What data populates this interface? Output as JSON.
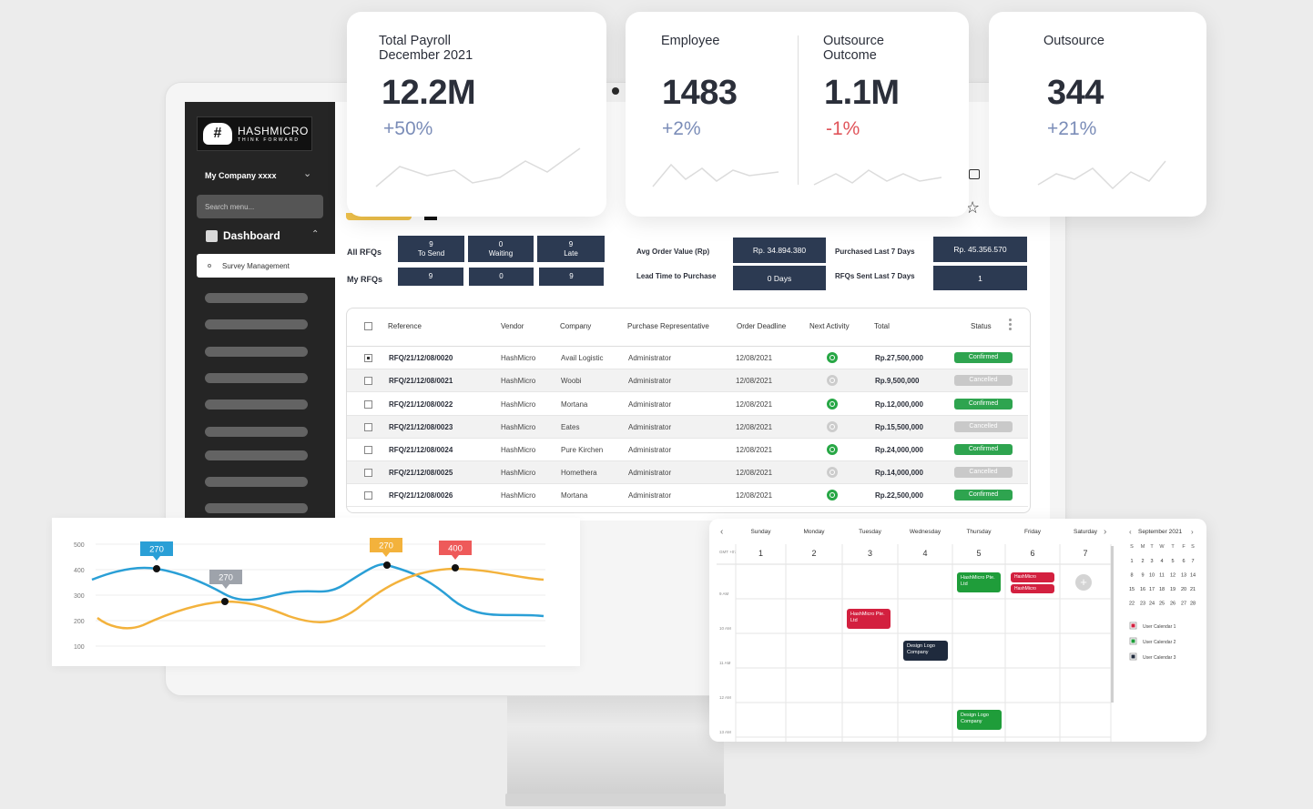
{
  "sidebar": {
    "logo_mark": "#",
    "logo_name": "HASHMICRO",
    "logo_tagline": "THINK FORWARD",
    "company": "My Company xxxx",
    "search_placeholder": "Search menu...",
    "dashboard_label": "Dashboard",
    "active_item": "Survey Management",
    "placeholder_items": 9
  },
  "kpis": {
    "payroll": {
      "title": "Total Payroll\nDecember 2021",
      "value": "12.2M",
      "change": "+50%",
      "trend": "up"
    },
    "employee": {
      "title": "Employee",
      "value": "1483",
      "change": "+2%",
      "trend": "up"
    },
    "outsource_outcome": {
      "title": "Outsource\nOutcome",
      "value": "1.1M",
      "change": "-1%",
      "trend": "down"
    },
    "outsource": {
      "title": "Outsource",
      "value": "344",
      "change": "+21%",
      "trend": "up"
    }
  },
  "rfq": {
    "all_label": "All RFQs",
    "my_label": "My RFQs",
    "all": [
      {
        "count": "9",
        "label": "To Send"
      },
      {
        "count": "0",
        "label": "Waiting"
      },
      {
        "count": "9",
        "label": "Late"
      }
    ],
    "my": [
      "9",
      "0",
      "9"
    ],
    "metrics": {
      "avg_order_label": "Avg Order Value (Rp)",
      "avg_order_value": "Rp. 34.894.380",
      "lead_time_label": "Lead Time to Purchase",
      "lead_time_value": "0 Days",
      "purchased_label": "Purchased Last 7 Days",
      "purchased_value": "Rp. 45.356.570",
      "sent_label": "RFQs Sent Last 7 Days",
      "sent_value": "1"
    }
  },
  "table": {
    "headers": {
      "reference": "Reference",
      "vendor": "Vendor",
      "company": "Company",
      "rep": "Purchase Representative",
      "deadline": "Order Deadline",
      "activity": "Next Activity",
      "total": "Total",
      "status": "Status"
    },
    "rows": [
      {
        "ref": "RFQ/21/12/08/0020",
        "vendor": "HashMicro",
        "company": "Avail Logistic",
        "rep": "Administrator",
        "deadline": "12/08/2021",
        "activity": true,
        "total": "Rp.27,500,000",
        "status": "Confirmed",
        "checked": true
      },
      {
        "ref": "RFQ/21/12/08/0021",
        "vendor": "HashMicro",
        "company": "Woobi",
        "rep": "Administrator",
        "deadline": "12/08/2021",
        "activity": false,
        "total": "Rp.9,500,000",
        "status": "Cancelled",
        "checked": false
      },
      {
        "ref": "RFQ/21/12/08/0022",
        "vendor": "HashMicro",
        "company": "Mortana",
        "rep": "Administrator",
        "deadline": "12/08/2021",
        "activity": true,
        "total": "Rp.12,000,000",
        "status": "Confirmed",
        "checked": false
      },
      {
        "ref": "RFQ/21/12/08/0023",
        "vendor": "HashMicro",
        "company": "Eates",
        "rep": "Administrator",
        "deadline": "12/08/2021",
        "activity": false,
        "total": "Rp.15,500,000",
        "status": "Cancelled",
        "checked": false
      },
      {
        "ref": "RFQ/21/12/08/0024",
        "vendor": "HashMicro",
        "company": "Pure Kirchen",
        "rep": "Administrator",
        "deadline": "12/08/2021",
        "activity": true,
        "total": "Rp.24,000,000",
        "status": "Confirmed",
        "checked": false
      },
      {
        "ref": "RFQ/21/12/08/0025",
        "vendor": "HashMicro",
        "company": "Homethera",
        "rep": "Administrator",
        "deadline": "12/08/2021",
        "activity": false,
        "total": "Rp.14,000,000",
        "status": "Cancelled",
        "checked": false
      },
      {
        "ref": "RFQ/21/12/08/0026",
        "vendor": "HashMicro",
        "company": "Mortana",
        "rep": "Administrator",
        "deadline": "12/08/2021",
        "activity": true,
        "total": "Rp.22,500,000",
        "status": "Confirmed",
        "checked": false
      }
    ]
  },
  "line_chart": {
    "y_ticks": [
      "500",
      "400",
      "300",
      "200",
      "100"
    ],
    "callouts": [
      {
        "text": "270",
        "color": "#2a9fd6"
      },
      {
        "text": "270",
        "color": "#9ea3ab"
      },
      {
        "text": "270",
        "color": "#f3b23c"
      },
      {
        "text": "400",
        "color": "#ee5a5a"
      }
    ],
    "series_colors": [
      "#2a9fd6",
      "#f3b23c"
    ]
  },
  "calendar": {
    "days": [
      "Sunday",
      "Monday",
      "Tuesday",
      "Wednesday",
      "Thursday",
      "Friday",
      "Saturday"
    ],
    "dates": [
      "1",
      "2",
      "3",
      "4",
      "5",
      "6",
      "7"
    ],
    "tz": "GMT +07",
    "times": [
      "9 AM",
      "10 AM",
      "11 AM",
      "12 AM",
      "13 AM"
    ],
    "events": [
      {
        "day": 4,
        "slot": 0,
        "text": "HashMicro Pte. Ltd",
        "color": "green"
      },
      {
        "day": 5,
        "slot": 0,
        "text": "HashMicro",
        "color": "red"
      },
      {
        "day": 5,
        "slot": 0,
        "text": "HashMicro",
        "color": "red"
      },
      {
        "day": 2,
        "slot": 1,
        "text": "HashMicro Pte. Ltd",
        "color": "red"
      },
      {
        "day": 3,
        "slot": 2,
        "text": "Design Logo Company",
        "color": "navy"
      },
      {
        "day": 4,
        "slot": 4,
        "text": "Design Logo Company",
        "color": "green"
      }
    ],
    "mini": {
      "month": "September 2021",
      "weekdays": [
        "S",
        "M",
        "T",
        "W",
        "T",
        "F",
        "S"
      ],
      "weeks": [
        [
          "1",
          "2",
          "3",
          "4",
          "5",
          "6",
          "7"
        ],
        [
          "8",
          "9",
          "10",
          "11",
          "12",
          "13",
          "14"
        ],
        [
          "15",
          "16",
          "17",
          "18",
          "19",
          "20",
          "21"
        ],
        [
          "22",
          "23",
          "24",
          "25",
          "26",
          "27",
          "28"
        ]
      ]
    },
    "user_calendars": [
      {
        "label": "User Calendar 1",
        "color": "#d3203f"
      },
      {
        "label": "User Calendar 2",
        "color": "#1f9d3a"
      },
      {
        "label": "User Calendar 3",
        "color": "#1f2a3d"
      }
    ]
  },
  "icons": [
    "star-icon",
    "grid-icon",
    "plus-icon",
    "chevron-left-icon",
    "chevron-right-icon"
  ]
}
